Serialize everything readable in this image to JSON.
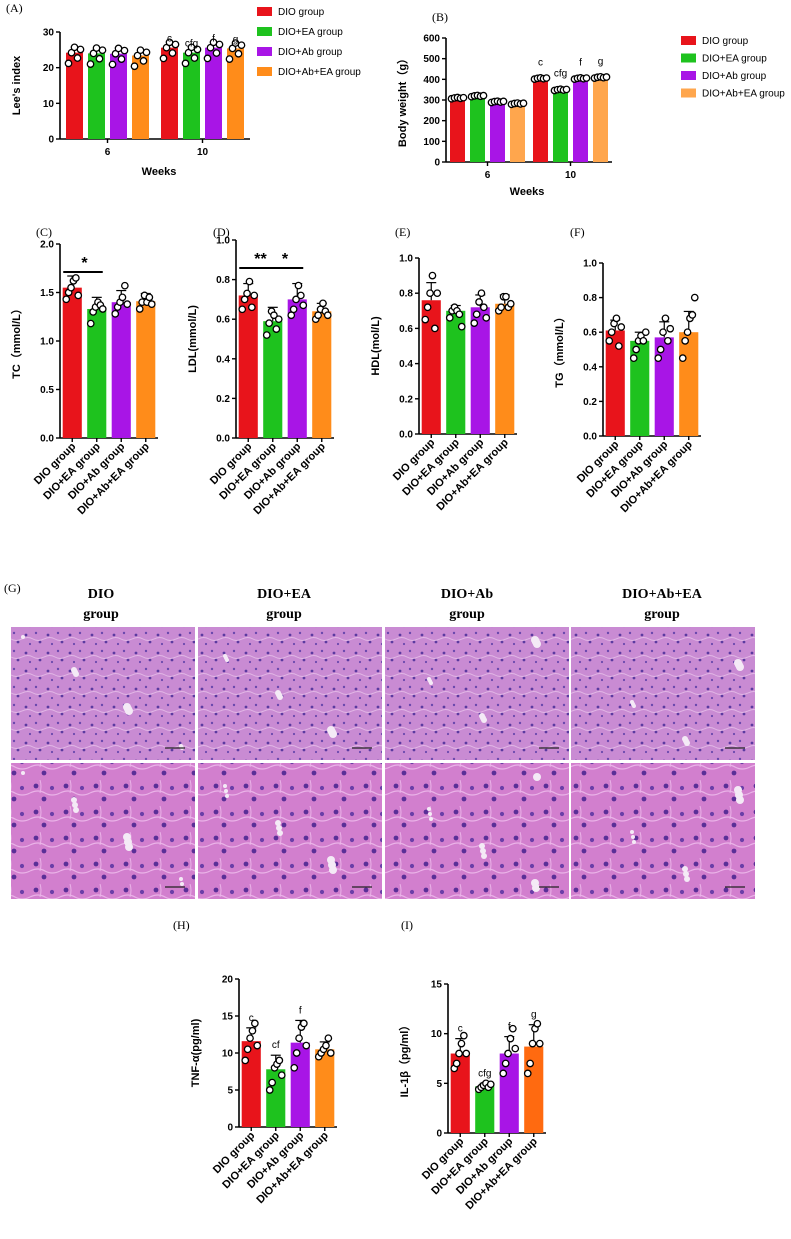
{
  "colors": {
    "dio": "#e8141b",
    "dio_ea": "#1ec21e",
    "dio_ab": "#a815e6",
    "dio_ab_ea_light": "#ffa64d",
    "dio_ab_ea": "#ff8c1a",
    "dio_ab_ea_dark": "#ff6a10",
    "he_stain": "#c87ac8"
  },
  "chart_data": [
    {
      "id": "A",
      "type": "bar",
      "panel_label": "(A)",
      "xlabel": "Weeks",
      "ylabel": "Lee's index",
      "ylim": [
        0,
        30
      ],
      "yticks": [
        0,
        10,
        20,
        30
      ],
      "categories": [
        "6",
        "10"
      ],
      "series": [
        {
          "name": "DIO group",
          "values": [
            24.2,
            25.6
          ],
          "labels": [
            "",
            "c"
          ]
        },
        {
          "name": "DIO+EA group",
          "values": [
            24.0,
            24.2
          ],
          "labels": [
            "",
            "cfg"
          ]
        },
        {
          "name": "DIO+Ab group",
          "values": [
            23.9,
            25.6
          ],
          "labels": [
            "",
            "f"
          ]
        },
        {
          "name": "DIO+Ab+EA group",
          "values": [
            23.4,
            25.4
          ],
          "labels": [
            "",
            "g"
          ]
        }
      ],
      "legend": "right"
    },
    {
      "id": "B",
      "type": "bar",
      "panel_label": "(B)",
      "xlabel": "Weeks",
      "ylabel": "Body weight（g）",
      "ylim": [
        0,
        600
      ],
      "yticks": [
        0,
        100,
        200,
        300,
        400,
        500,
        600
      ],
      "categories": [
        "6",
        "10"
      ],
      "series": [
        {
          "name": "DIO group",
          "values": [
            310,
            405
          ],
          "labels": [
            "",
            "c"
          ]
        },
        {
          "name": "DIO+EA group",
          "values": [
            320,
            350
          ],
          "labels": [
            "",
            "cfg"
          ]
        },
        {
          "name": "DIO+Ab group",
          "values": [
            292,
            405
          ],
          "labels": [
            "",
            "f"
          ]
        },
        {
          "name": "DIO+Ab+EA group",
          "values": [
            283,
            410
          ],
          "labels": [
            "",
            "g"
          ]
        }
      ],
      "legend": "right"
    },
    {
      "id": "C",
      "type": "bar",
      "panel_label": "(C)",
      "ylabel": "TC（mmol/L）",
      "ylim": [
        0,
        2.0
      ],
      "yticks": [
        "0.0",
        "0.5",
        "1.0",
        "1.5",
        "2.0"
      ],
      "categories": [
        "DIO group",
        "DIO+EA group",
        "DIO+Ab group",
        "DIO+Ab+EA group"
      ],
      "values": [
        1.55,
        1.33,
        1.4,
        1.41
      ],
      "sd": [
        0.12,
        0.12,
        0.12,
        0.08
      ],
      "points": [
        [
          1.43,
          1.5,
          1.55,
          1.62,
          1.65,
          1.47
        ],
        [
          1.18,
          1.3,
          1.35,
          1.4,
          1.37,
          1.33
        ],
        [
          1.28,
          1.35,
          1.4,
          1.45,
          1.57,
          1.38
        ],
        [
          1.33,
          1.4,
          1.47,
          1.4,
          1.45,
          1.38
        ]
      ],
      "significance": [
        {
          "from": 0,
          "to": 1,
          "label": "*"
        }
      ]
    },
    {
      "id": "D",
      "type": "bar",
      "panel_label": "(D)",
      "ylabel": "LDL(mmol/L)",
      "ylim": [
        0,
        1.0
      ],
      "yticks": [
        "0.0",
        "0.2",
        "0.4",
        "0.6",
        "0.8",
        "1.0"
      ],
      "categories": [
        "DIO group",
        "DIO+EA group",
        "DIO+Ab group",
        "DIO+Ab+EA group"
      ],
      "values": [
        0.72,
        0.59,
        0.7,
        0.64
      ],
      "sd": [
        0.06,
        0.07,
        0.08,
        0.04
      ],
      "points": [
        [
          0.65,
          0.7,
          0.73,
          0.79,
          0.66,
          0.72
        ],
        [
          0.52,
          0.58,
          0.64,
          0.62,
          0.55,
          0.6
        ],
        [
          0.62,
          0.65,
          0.7,
          0.77,
          0.72,
          0.67
        ],
        [
          0.6,
          0.62,
          0.65,
          0.68,
          0.64,
          0.62
        ]
      ],
      "significance": [
        {
          "from": 0,
          "to": 1,
          "label": "**"
        },
        {
          "from": 1,
          "to": 2,
          "label": "*"
        }
      ]
    },
    {
      "id": "E",
      "type": "bar",
      "panel_label": "(E)",
      "ylabel": "HDL(mol/L)",
      "ylim": [
        0,
        1.0
      ],
      "yticks": [
        "0.0",
        "0.2",
        "0.4",
        "0.6",
        "0.8",
        "1.0"
      ],
      "categories": [
        "DIO group",
        "DIO+EA group",
        "DIO+Ab group",
        "DIO+Ab+EA group"
      ],
      "values": [
        0.76,
        0.7,
        0.72,
        0.74
      ],
      "sd": [
        0.1,
        0.03,
        0.07,
        0.05
      ],
      "points": [
        [
          0.65,
          0.72,
          0.8,
          0.9,
          0.6,
          0.8
        ],
        [
          0.66,
          0.7,
          0.72,
          0.7,
          0.68,
          0.61
        ],
        [
          0.63,
          0.68,
          0.75,
          0.8,
          0.72,
          0.66
        ],
        [
          0.7,
          0.72,
          0.78,
          0.78,
          0.72,
          0.74
        ]
      ],
      "significance": []
    },
    {
      "id": "F",
      "type": "bar",
      "panel_label": "(F)",
      "ylabel": "TG（mmol/L）",
      "ylim": [
        0,
        1.0
      ],
      "yticks": [
        "0.0",
        "0.2",
        "0.4",
        "0.6",
        "0.8",
        "1.0"
      ],
      "categories": [
        "DIO group",
        "DIO+EA group",
        "DIO+Ab group",
        "DIO+Ab+EA group"
      ],
      "values": [
        0.61,
        0.55,
        0.57,
        0.6
      ],
      "sd": [
        0.06,
        0.05,
        0.09,
        0.12
      ],
      "points": [
        [
          0.55,
          0.6,
          0.65,
          0.68,
          0.52,
          0.63
        ],
        [
          0.45,
          0.5,
          0.55,
          0.58,
          0.55,
          0.6
        ],
        [
          0.45,
          0.5,
          0.6,
          0.68,
          0.55,
          0.62
        ],
        [
          0.45,
          0.55,
          0.6,
          0.68,
          0.7,
          0.8
        ]
      ],
      "significance": []
    },
    {
      "id": "H",
      "type": "bar",
      "panel_label": "(H)",
      "ylabel": "TNF-α(pg/ml)",
      "ylim": [
        0,
        20
      ],
      "yticks": [
        0,
        5,
        10,
        15,
        20
      ],
      "categories": [
        "DIO group",
        "DIO+EA group",
        "DIO+Ab group",
        "DIO+Ab+EA group"
      ],
      "values": [
        11.6,
        7.8,
        11.4,
        10.5
      ],
      "sd": [
        1.8,
        1.9,
        3.0,
        1.0
      ],
      "points": [
        [
          9.0,
          10.5,
          12.0,
          13.0,
          14.0,
          11.0
        ],
        [
          5.0,
          6.0,
          8.0,
          8.5,
          9.0,
          7.0
        ],
        [
          8.0,
          10.0,
          12.0,
          13.5,
          14.0,
          11.0
        ],
        [
          9.5,
          10.0,
          10.5,
          11.0,
          12.0,
          10.0
        ]
      ],
      "bar_labels": [
        "c",
        "cf",
        "f",
        ""
      ]
    },
    {
      "id": "I",
      "type": "bar",
      "panel_label": "(I)",
      "ylabel": "IL-1β（pg/ml）",
      "ylim": [
        0,
        15
      ],
      "yticks": [
        0,
        5,
        10,
        15
      ],
      "categories": [
        "DIO group",
        "DIO+EA group",
        "DIO+Ab group",
        "DIO+Ab+EA group"
      ],
      "values": [
        8.0,
        4.7,
        8.0,
        8.7
      ],
      "sd": [
        1.5,
        0.3,
        1.7,
        2.2
      ],
      "points": [
        [
          6.5,
          7.0,
          8.0,
          9.0,
          9.8,
          8.0
        ],
        [
          4.4,
          4.6,
          4.8,
          5.0,
          4.6,
          4.9
        ],
        [
          6.0,
          7.0,
          8.0,
          9.5,
          10.5,
          8.5
        ],
        [
          6.0,
          7.0,
          9.0,
          10.5,
          11.0,
          9.0
        ]
      ],
      "bar_labels": [
        "c",
        "cfg",
        "f",
        "g"
      ]
    }
  ],
  "micrographs": {
    "panel_label": "(G)",
    "columns": [
      {
        "line1": "DIO",
        "line2": "group"
      },
      {
        "line1": "DIO+EA",
        "line2": "group"
      },
      {
        "line1": "DIO+Ab",
        "line2": "group"
      },
      {
        "line1": "DIO+Ab+EA",
        "line2": "group"
      }
    ]
  }
}
